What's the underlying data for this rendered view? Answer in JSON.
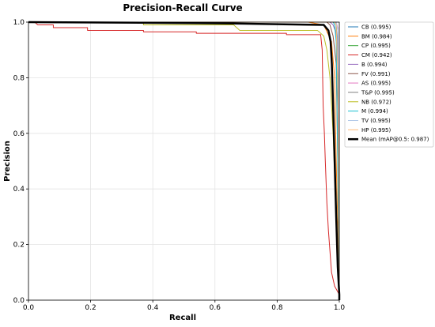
{
  "chart_data": {
    "type": "line",
    "title": "Precision-Recall Curve",
    "xlabel": "Recall",
    "ylabel": "Precision",
    "xlim": [
      0.0,
      1.0
    ],
    "ylim": [
      0.0,
      1.0
    ],
    "grid": true,
    "legend_position": "top-right",
    "x_ticks": [
      "0.0",
      "0.2",
      "0.4",
      "0.6",
      "0.8",
      "1.0"
    ],
    "y_ticks": [
      "0.0",
      "0.2",
      "0.4",
      "0.6",
      "0.8",
      "1.0"
    ],
    "series": [
      {
        "name": "CB (0.995)",
        "color": "#1f77b4",
        "width": 1,
        "points": [
          [
            0,
            1
          ],
          [
            0.985,
            1
          ],
          [
            0.99,
            0.99
          ],
          [
            0.995,
            0.9
          ],
          [
            1.0,
            0.3
          ],
          [
            1.0,
            0
          ]
        ]
      },
      {
        "name": "BM (0.984)",
        "color": "#ff7f0e",
        "width": 1,
        "points": [
          [
            0,
            1
          ],
          [
            0.9,
            1
          ],
          [
            0.95,
            0.99
          ],
          [
            0.975,
            0.93
          ],
          [
            0.985,
            0.8
          ],
          [
            0.99,
            0.5
          ],
          [
            1.0,
            0.05
          ],
          [
            1.0,
            0
          ]
        ]
      },
      {
        "name": "CP (0.995)",
        "color": "#2ca02c",
        "width": 1,
        "points": [
          [
            0,
            1
          ],
          [
            0.985,
            1
          ],
          [
            0.99,
            0.99
          ],
          [
            0.996,
            0.7
          ],
          [
            1.0,
            0.1
          ],
          [
            1.0,
            0
          ]
        ]
      },
      {
        "name": "CM (0.942)",
        "color": "#d62728",
        "width": 1,
        "points": [
          [
            0,
            1
          ],
          [
            0.02,
            1
          ],
          [
            0.03,
            0.99
          ],
          [
            0.08,
            0.99
          ],
          [
            0.08,
            0.98
          ],
          [
            0.19,
            0.98
          ],
          [
            0.19,
            0.97
          ],
          [
            0.37,
            0.97
          ],
          [
            0.37,
            0.965
          ],
          [
            0.54,
            0.965
          ],
          [
            0.54,
            0.96
          ],
          [
            0.83,
            0.96
          ],
          [
            0.83,
            0.955
          ],
          [
            0.94,
            0.955
          ],
          [
            0.945,
            0.9
          ],
          [
            0.948,
            0.7
          ],
          [
            0.952,
            0.6
          ],
          [
            0.955,
            0.5
          ],
          [
            0.96,
            0.35
          ],
          [
            0.965,
            0.25
          ],
          [
            0.975,
            0.1
          ],
          [
            0.985,
            0.05
          ],
          [
            1.0,
            0.02
          ],
          [
            1.0,
            0
          ]
        ]
      },
      {
        "name": "B (0.994)",
        "color": "#9467bd",
        "width": 1,
        "points": [
          [
            0,
            1
          ],
          [
            0.97,
            1
          ],
          [
            0.98,
            0.99
          ],
          [
            0.99,
            0.96
          ],
          [
            0.995,
            0.8
          ],
          [
            1.0,
            0.2
          ],
          [
            1.0,
            0
          ]
        ]
      },
      {
        "name": "FV (0.991)",
        "color": "#8c564b",
        "width": 1,
        "points": [
          [
            0,
            1
          ],
          [
            0.96,
            1
          ],
          [
            0.97,
            0.99
          ],
          [
            0.98,
            0.95
          ],
          [
            0.99,
            0.85
          ],
          [
            0.995,
            0.5
          ],
          [
            1.0,
            0.05
          ],
          [
            1.0,
            0
          ]
        ]
      },
      {
        "name": "AS (0.995)",
        "color": "#e377c2",
        "width": 1,
        "points": [
          [
            0,
            1
          ],
          [
            0.99,
            1
          ],
          [
            0.995,
            0.98
          ],
          [
            1.0,
            0.6
          ],
          [
            1.0,
            0
          ]
        ]
      },
      {
        "name": "T&P (0.995)",
        "color": "#7f7f7f",
        "width": 1,
        "points": [
          [
            0,
            1
          ],
          [
            0.985,
            1
          ],
          [
            0.99,
            0.99
          ],
          [
            0.997,
            0.8
          ],
          [
            1.0,
            0.2
          ],
          [
            1.0,
            0
          ]
        ]
      },
      {
        "name": "NB (0.972)",
        "color": "#bcbd22",
        "width": 1,
        "points": [
          [
            0,
            1
          ],
          [
            0.37,
            1
          ],
          [
            0.37,
            0.99
          ],
          [
            0.66,
            0.99
          ],
          [
            0.68,
            0.97
          ],
          [
            0.93,
            0.97
          ],
          [
            0.95,
            0.95
          ],
          [
            0.96,
            0.9
          ],
          [
            0.965,
            0.85
          ],
          [
            0.97,
            0.8
          ],
          [
            0.975,
            0.7
          ],
          [
            0.98,
            0.6
          ],
          [
            0.985,
            0.45
          ],
          [
            0.99,
            0.3
          ],
          [
            0.995,
            0.15
          ],
          [
            1.0,
            0.05
          ],
          [
            1.0,
            0
          ]
        ]
      },
      {
        "name": "M (0.994)",
        "color": "#17becf",
        "width": 1,
        "points": [
          [
            0,
            1
          ],
          [
            0.98,
            1
          ],
          [
            0.985,
            0.99
          ],
          [
            0.99,
            0.93
          ],
          [
            0.995,
            0.5
          ],
          [
            1.0,
            0.1
          ],
          [
            1.0,
            0
          ]
        ]
      },
      {
        "name": "TV (0.995)",
        "color": "#aec7e8",
        "width": 1,
        "points": [
          [
            0,
            1
          ],
          [
            0.99,
            1
          ],
          [
            0.995,
            0.97
          ],
          [
            1.0,
            0.4
          ],
          [
            1.0,
            0
          ]
        ]
      },
      {
        "name": "HP (0.995)",
        "color": "#ffbb78",
        "width": 1,
        "points": [
          [
            0,
            1
          ],
          [
            0.985,
            1
          ],
          [
            0.99,
            0.99
          ],
          [
            0.996,
            0.75
          ],
          [
            1.0,
            0.15
          ],
          [
            1.0,
            0
          ]
        ]
      },
      {
        "name": "Mean (mAP@0.5: 0.987)",
        "color": "#000000",
        "width": 2.5,
        "points": [
          [
            0,
            1
          ],
          [
            0.36,
            0.998
          ],
          [
            0.66,
            0.995
          ],
          [
            0.95,
            0.99
          ],
          [
            0.965,
            0.97
          ],
          [
            0.972,
            0.93
          ],
          [
            0.976,
            0.85
          ],
          [
            0.98,
            0.7
          ],
          [
            0.985,
            0.5
          ],
          [
            0.99,
            0.3
          ],
          [
            0.995,
            0.12
          ],
          [
            1.0,
            0.02
          ],
          [
            1.0,
            0
          ]
        ]
      }
    ]
  }
}
